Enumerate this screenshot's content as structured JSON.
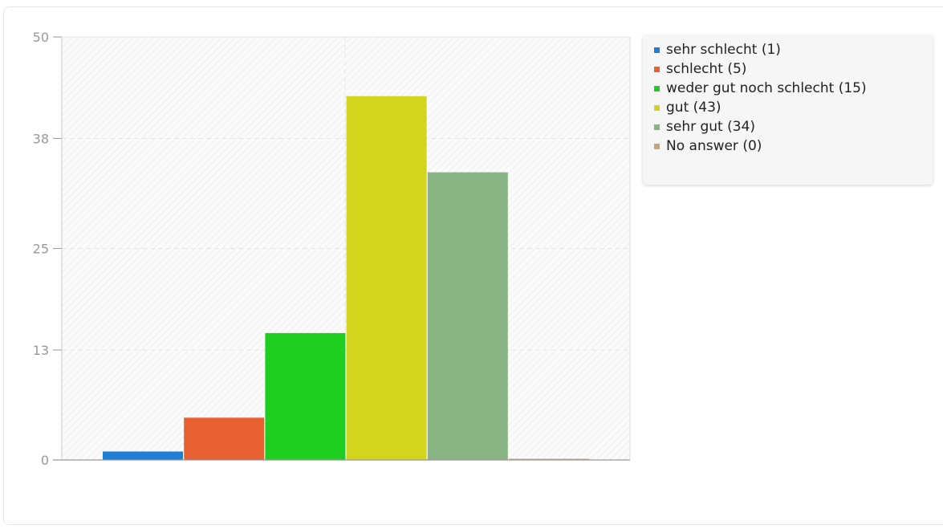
{
  "chart_data": {
    "type": "bar",
    "categories": [
      "sehr schlecht (1)",
      "schlecht (5)",
      "weder gut noch schlecht (15)",
      "gut (43)",
      "sehr gut (34)",
      "No answer (0)"
    ],
    "values": [
      1,
      5,
      15,
      43,
      34,
      0
    ],
    "colors": [
      "#1f7fd6",
      "#e86032",
      "#1ecf22",
      "#d3d41e",
      "#88b383",
      "#c9a27e"
    ],
    "ylim": [
      0,
      50
    ],
    "yticks": [
      "0",
      "13",
      "25",
      "38",
      "50"
    ],
    "grid": true,
    "legend_position": "right",
    "title": "",
    "xlabel": "",
    "ylabel": ""
  }
}
